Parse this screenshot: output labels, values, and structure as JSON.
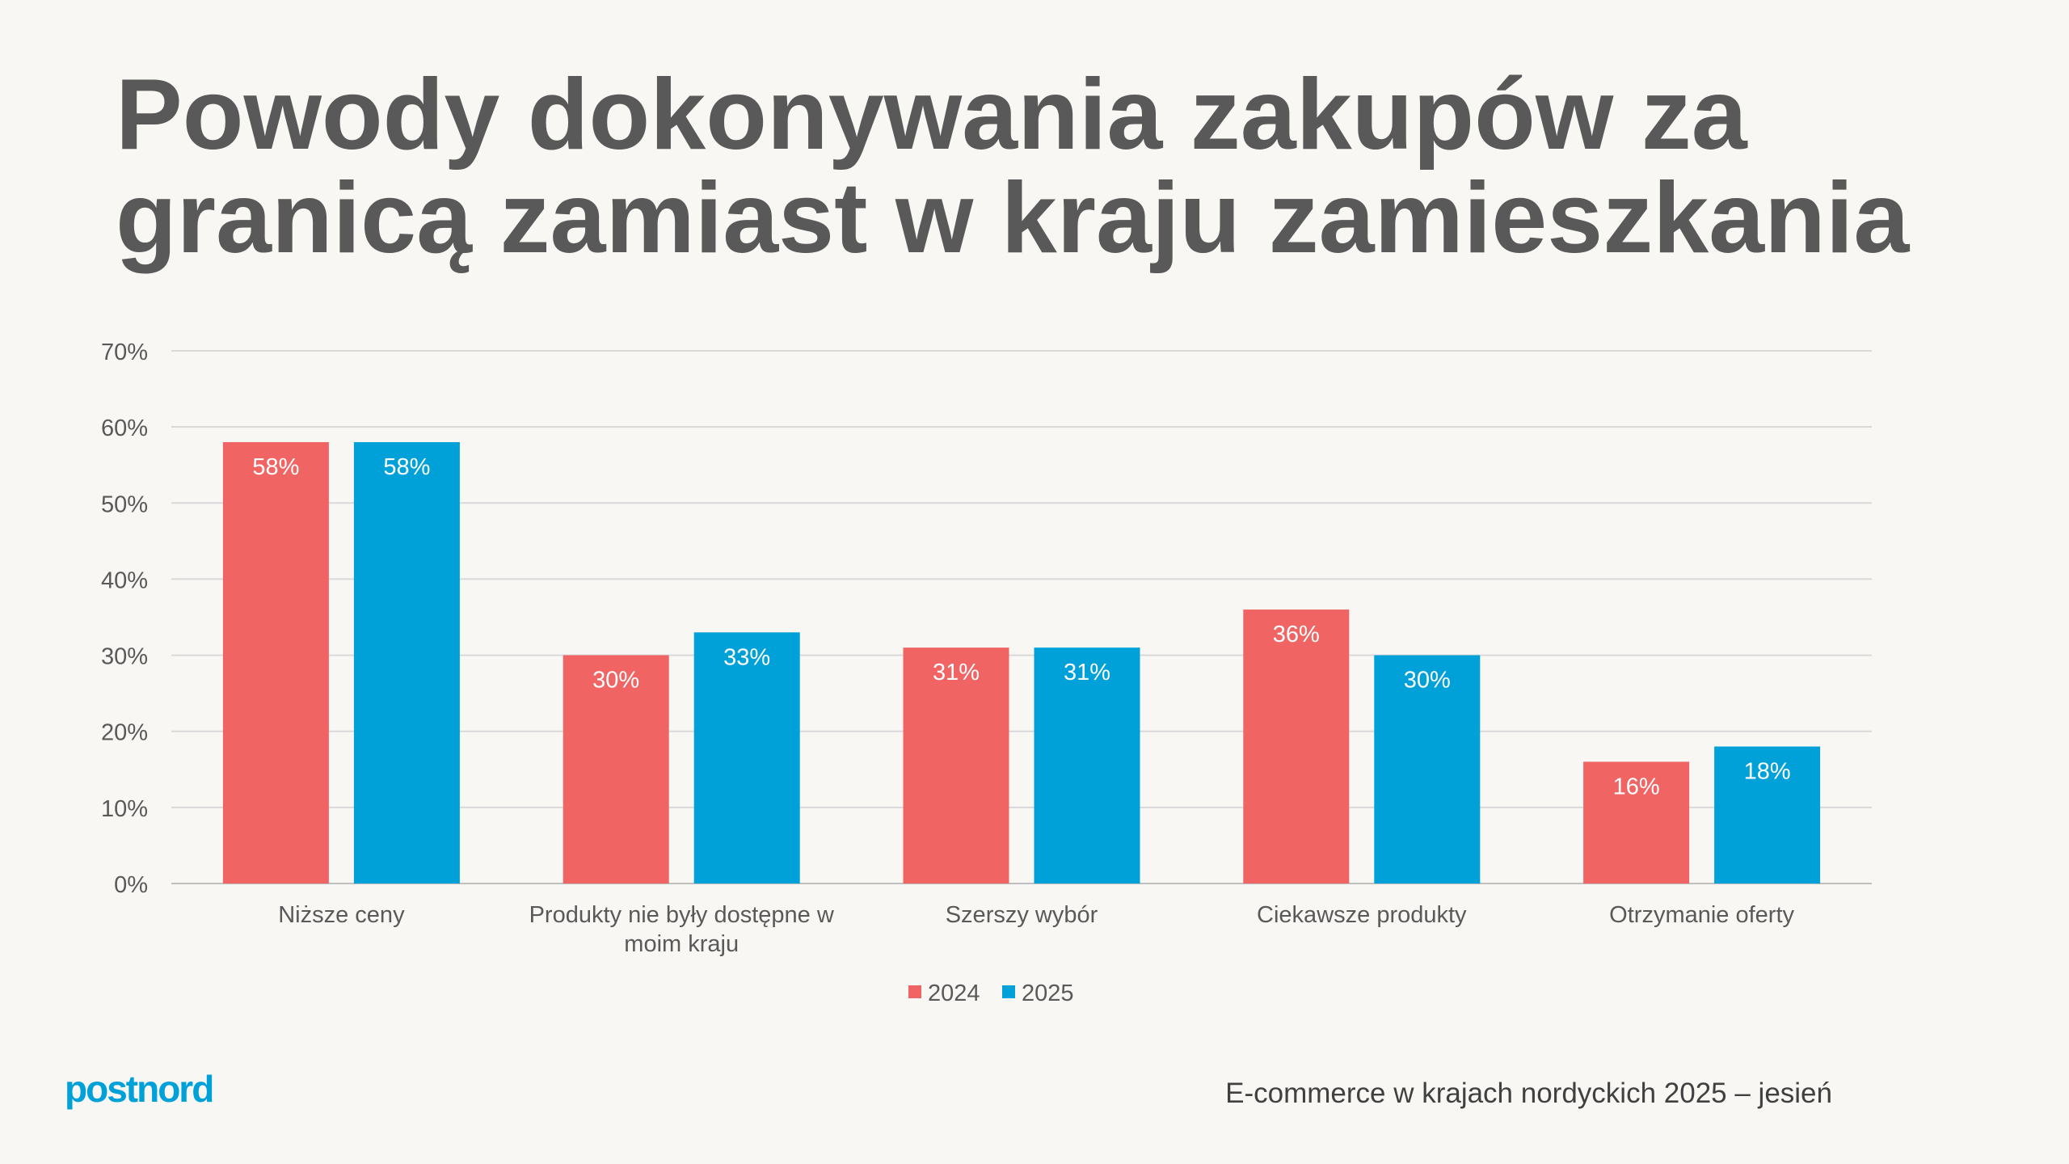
{
  "title_line1": "Powody dokonywania zakupów za",
  "title_line2": "granicą zamiast w kraju zamieszkania",
  "footer": "E-commerce w krajach nordyckich 2025 – jesień",
  "logo": "postnord",
  "chart_data": {
    "type": "bar",
    "categories": [
      [
        "Niższe ceny"
      ],
      [
        "Produkty nie były dostępne w",
        "moim kraju"
      ],
      [
        "Szerszy wybór"
      ],
      [
        "Ciekawsze produkty"
      ],
      [
        "Otrzymanie oferty"
      ]
    ],
    "series": [
      {
        "name": "2024",
        "color": "#F06464",
        "values": [
          58,
          30,
          31,
          36,
          16
        ]
      },
      {
        "name": "2025",
        "color": "#00A0D8",
        "values": [
          58,
          33,
          31,
          30,
          18
        ]
      }
    ],
    "yticks": [
      "0%",
      "10%",
      "20%",
      "30%",
      "40%",
      "50%",
      "60%",
      "70%"
    ],
    "ylim": [
      0,
      70
    ],
    "grid": true,
    "legend": "bottom",
    "data_label_suffix": "%"
  }
}
